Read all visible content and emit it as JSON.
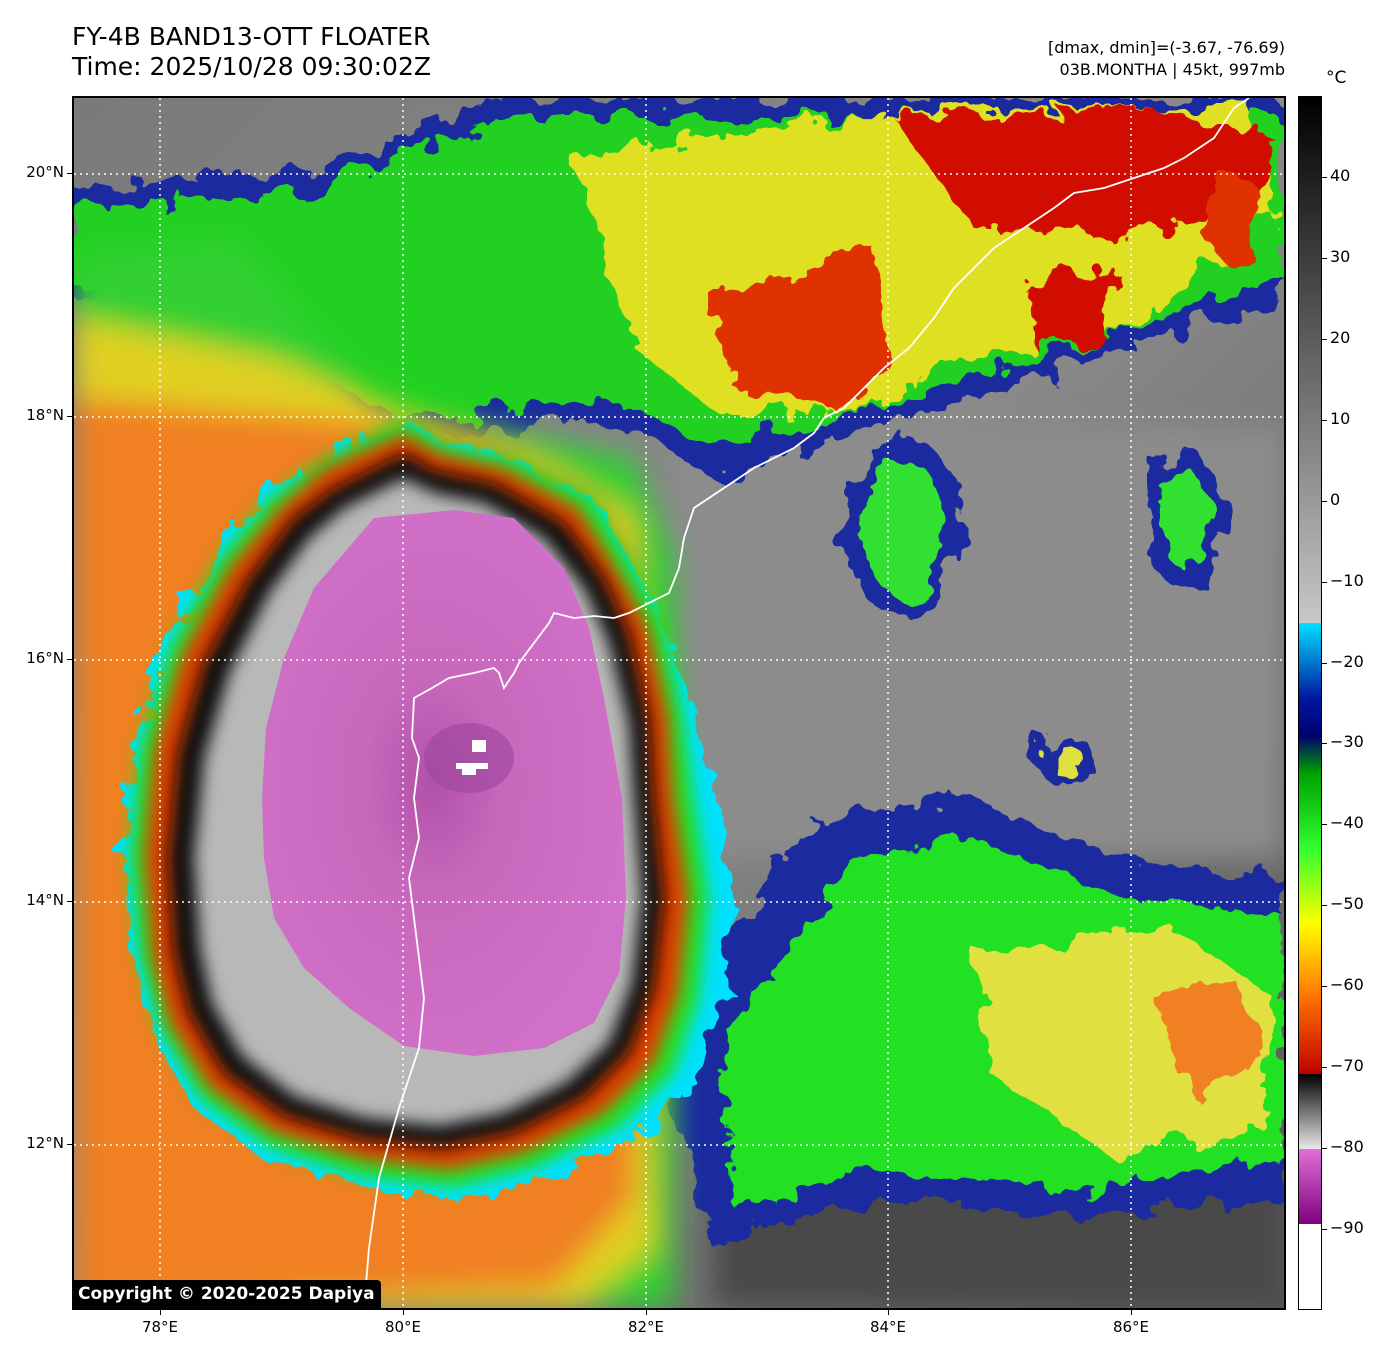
{
  "header": {
    "title_line1": "FY-4B BAND13-OTT FLOATER",
    "title_line2": "Time: 2025/10/28 09:30:02Z",
    "meta_line1": "[dmax, dmin]=(-3.67, -76.69)",
    "meta_line2": "03B.MONTHA | 45kt, 997mb"
  },
  "map": {
    "lat_labels": [
      "20°N",
      "18°N",
      "16°N",
      "14°N",
      "12°N"
    ],
    "lon_labels": [
      "78°E",
      "80°E",
      "82°E",
      "84°E",
      "86°E"
    ],
    "lat_min": 10.6,
    "lat_max": 20.6,
    "lon_min": 77.3,
    "lon_max": 87.3,
    "gridline_lats": [
      20,
      18,
      16,
      14,
      12
    ],
    "gridline_lons": [
      78,
      80,
      82,
      84,
      86
    ],
    "copyright": "Copyright © 2020-2025 Dapiya",
    "storm_center": {
      "lat": 15.1,
      "lon": 80.6
    }
  },
  "colorbar": {
    "unit": "°C",
    "labels": [
      "40",
      "30",
      "20",
      "10",
      "0",
      "−10",
      "−20",
      "−30",
      "−40",
      "−50",
      "−60",
      "−70",
      "−80",
      "−90"
    ],
    "values": [
      40,
      30,
      20,
      10,
      0,
      -10,
      -20,
      -30,
      -40,
      -50,
      -60,
      -70,
      -80,
      -90
    ],
    "vmax": 50,
    "vmin": -100
  },
  "colors": {
    "overshoot": "#d070c8",
    "ring_red": "#d01000",
    "cloud_green": "#20e020",
    "cold_blue": "#1020a0",
    "cyan": "#00e0ff",
    "coast": "#ffffff"
  }
}
